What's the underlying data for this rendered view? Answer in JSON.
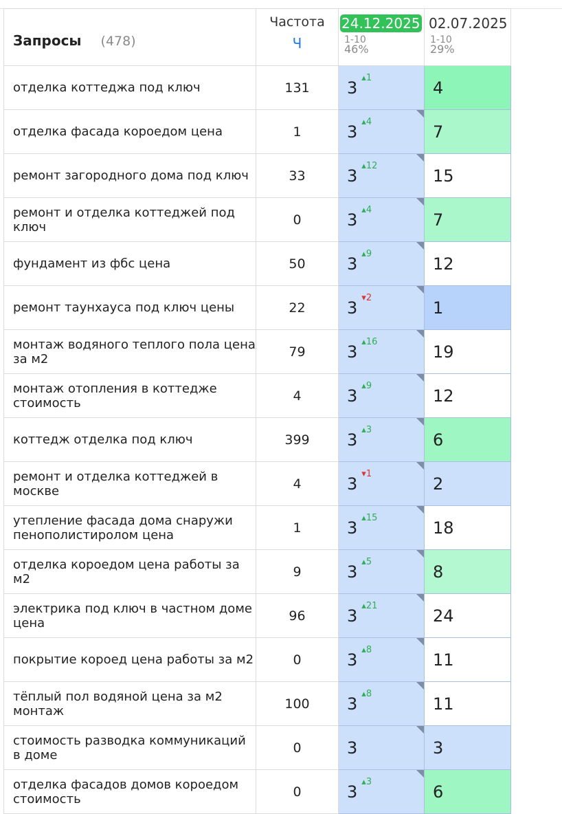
{
  "header": {
    "title": "Запросы",
    "count": "(478)",
    "freq_title": "Частота",
    "freq_sub": "Ч",
    "dates": [
      {
        "date": "24.12.2025",
        "range": "1-10",
        "pct": "46%"
      },
      {
        "date": "02.07.2025",
        "range": "1-10",
        "pct": "29%"
      }
    ]
  },
  "rows": [
    {
      "q": "отделка коттеджа под ключ",
      "f": "131",
      "p1": "3",
      "d": "1",
      "dir": "up",
      "p2": "4",
      "c2": "#8ef5b9"
    },
    {
      "q": "отделка фасада короедом цена",
      "f": "1",
      "p1": "3",
      "d": "4",
      "dir": "up",
      "p2": "7",
      "c2": "#aaf7cc"
    },
    {
      "q": "ремонт загородного дома под ключ",
      "f": "33",
      "p1": "3",
      "d": "12",
      "dir": "up",
      "p2": "15",
      "c2": "#ffffff"
    },
    {
      "q": "ремонт и отделка коттеджей под ключ",
      "f": "0",
      "p1": "3",
      "d": "4",
      "dir": "up",
      "p2": "7",
      "c2": "#aaf7cc"
    },
    {
      "q": "фундамент из фбс цена",
      "f": "50",
      "p1": "3",
      "d": "9",
      "dir": "up",
      "p2": "12",
      "c2": "#ffffff"
    },
    {
      "q": "ремонт таунхауса под ключ цены",
      "f": "22",
      "p1": "3",
      "d": "2",
      "dir": "dn",
      "p2": "1",
      "c2": "#b7d3fb"
    },
    {
      "q": "монтаж водяного теплого пола цена за м2",
      "f": "79",
      "p1": "3",
      "d": "16",
      "dir": "up",
      "p2": "19",
      "c2": "#ffffff"
    },
    {
      "q": "монтаж отопления в коттедже стоимость",
      "f": "4",
      "p1": "3",
      "d": "9",
      "dir": "up",
      "p2": "12",
      "c2": "#ffffff"
    },
    {
      "q": "коттедж отделка под ключ",
      "f": "399",
      "p1": "3",
      "d": "3",
      "dir": "up",
      "p2": "6",
      "c2": "#9ef6c3"
    },
    {
      "q": "ремонт и отделка коттеджей в москве",
      "f": "4",
      "p1": "3",
      "d": "1",
      "dir": "dn",
      "p2": "2",
      "c2": "#cce0fc"
    },
    {
      "q": "утепление фасада дома снаружи пенополистиролом цена",
      "f": "1",
      "p1": "3",
      "d": "15",
      "dir": "up",
      "p2": "18",
      "c2": "#ffffff"
    },
    {
      "q": "отделка короедом цена работы за м2",
      "f": "9",
      "p1": "3",
      "d": "5",
      "dir": "up",
      "p2": "8",
      "c2": "#b4f8d2"
    },
    {
      "q": "электрика под ключ в частном доме цена",
      "f": "96",
      "p1": "3",
      "d": "21",
      "dir": "up",
      "p2": "24",
      "c2": "#ffffff"
    },
    {
      "q": "покрытие короед цена работы за м2",
      "f": "0",
      "p1": "3",
      "d": "8",
      "dir": "up",
      "p2": "11",
      "c2": "#ffffff"
    },
    {
      "q": "тёплый пол водяной цена за м2 монтаж",
      "f": "100",
      "p1": "3",
      "d": "8",
      "dir": "up",
      "p2": "11",
      "c2": "#ffffff"
    },
    {
      "q": "стоимость разводка коммуникаций в доме",
      "f": "0",
      "p1": "3",
      "d": "",
      "dir": "",
      "p2": "3",
      "c2": "#cce0fc"
    },
    {
      "q": "отделка фасадов домов короедом стоимость",
      "f": "0",
      "p1": "3",
      "d": "3",
      "dir": "up",
      "p2": "6",
      "c2": "#9ef6c3"
    }
  ]
}
